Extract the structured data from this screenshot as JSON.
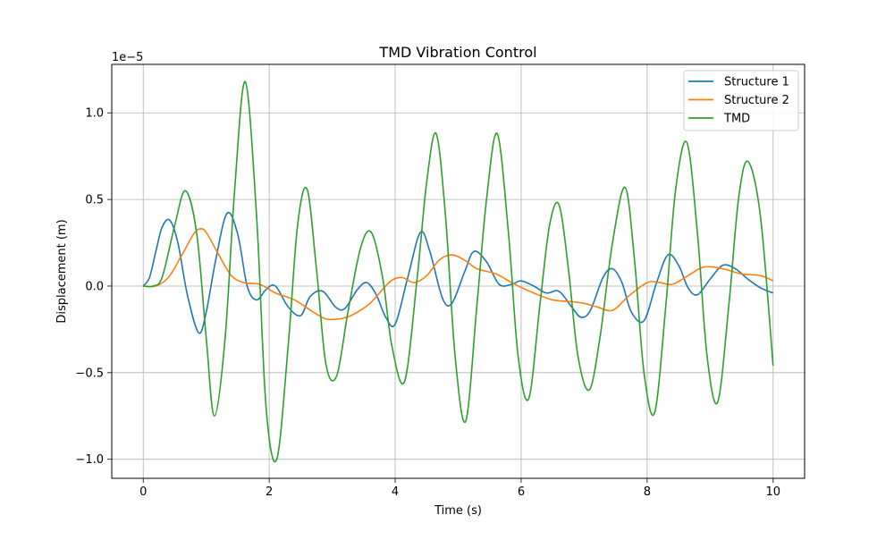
{
  "chart_data": {
    "type": "line",
    "title": "TMD Vibration Control",
    "xlabel": "Time (s)",
    "ylabel": "Displacement (m)",
    "offset_text": "1e−5",
    "scale": 1e-05,
    "xlim": [
      -0.5,
      10.5
    ],
    "ylim": [
      -1.11,
      1.28
    ],
    "xticks": [
      0,
      2,
      4,
      6,
      8,
      10
    ],
    "xtick_labels": [
      "0",
      "2",
      "4",
      "6",
      "8",
      "10"
    ],
    "yticks": [
      -1.0,
      -0.5,
      0.0,
      0.5,
      1.0
    ],
    "ytick_labels": [
      "−1.0",
      "−0.5",
      "0.0",
      "0.5",
      "1.0"
    ],
    "grid": true,
    "legend_position": "top-right",
    "series": [
      {
        "name": "Structure 1",
        "color": "#1f77b4",
        "x": [
          0,
          0.1,
          0.2,
          0.3,
          0.42,
          0.55,
          0.7,
          0.88,
          1.0,
          1.15,
          1.33,
          1.5,
          1.65,
          1.8,
          1.95,
          2.1,
          2.3,
          2.5,
          2.65,
          2.85,
          3.05,
          3.2,
          3.4,
          3.55,
          3.7,
          3.85,
          4.0,
          4.2,
          4.4,
          4.55,
          4.75,
          4.9,
          5.1,
          5.25,
          5.45,
          5.65,
          5.85,
          6.0,
          6.2,
          6.4,
          6.6,
          6.8,
          6.95,
          7.1,
          7.3,
          7.45,
          7.6,
          7.75,
          7.95,
          8.15,
          8.33,
          8.5,
          8.65,
          8.8,
          9.0,
          9.2,
          9.4,
          9.6,
          9.8,
          10.0
        ],
        "values": [
          0,
          0.05,
          0.2,
          0.34,
          0.38,
          0.25,
          -0.05,
          -0.27,
          -0.15,
          0.15,
          0.42,
          0.3,
          0.0,
          -0.08,
          -0.02,
          0.0,
          -0.12,
          -0.17,
          -0.06,
          -0.03,
          -0.12,
          -0.13,
          -0.02,
          0.02,
          -0.05,
          -0.18,
          -0.22,
          0.05,
          0.31,
          0.2,
          -0.07,
          -0.1,
          0.08,
          0.2,
          0.14,
          0.01,
          0.01,
          0.03,
          0.0,
          -0.04,
          -0.03,
          -0.12,
          -0.18,
          -0.14,
          0.05,
          0.1,
          0.02,
          -0.15,
          -0.2,
          0.02,
          0.18,
          0.12,
          -0.01,
          -0.05,
          0.04,
          0.12,
          0.1,
          0.04,
          -0.01,
          -0.04
        ]
      },
      {
        "name": "Structure 2",
        "color": "#ff7f0e",
        "x": [
          0,
          0.2,
          0.4,
          0.6,
          0.8,
          0.9,
          1.0,
          1.2,
          1.4,
          1.6,
          1.85,
          2.1,
          2.4,
          2.7,
          2.9,
          3.1,
          3.3,
          3.6,
          3.9,
          4.1,
          4.3,
          4.5,
          4.7,
          4.9,
          5.1,
          5.3,
          5.6,
          5.9,
          6.2,
          6.5,
          6.8,
          7.0,
          7.2,
          7.45,
          7.7,
          8.0,
          8.2,
          8.4,
          8.65,
          8.9,
          9.2,
          9.5,
          9.8,
          10.0
        ],
        "values": [
          0,
          0.0,
          0.05,
          0.17,
          0.3,
          0.33,
          0.31,
          0.18,
          0.06,
          0.02,
          0.01,
          -0.04,
          -0.08,
          -0.15,
          -0.19,
          -0.19,
          -0.17,
          -0.1,
          0.02,
          0.05,
          0.02,
          0.06,
          0.15,
          0.18,
          0.15,
          0.1,
          0.07,
          0.01,
          -0.04,
          -0.08,
          -0.09,
          -0.1,
          -0.12,
          -0.14,
          -0.06,
          0.02,
          0.02,
          0.01,
          0.06,
          0.11,
          0.1,
          0.07,
          0.06,
          0.03
        ]
      },
      {
        "name": "TMD",
        "color": "#2ca02c",
        "x": [
          0,
          0.15,
          0.3,
          0.5,
          0.67,
          0.85,
          1.0,
          1.13,
          1.3,
          1.45,
          1.62,
          1.8,
          1.95,
          2.12,
          2.3,
          2.45,
          2.6,
          2.75,
          2.9,
          3.07,
          3.25,
          3.45,
          3.62,
          3.8,
          3.95,
          4.15,
          4.35,
          4.5,
          4.65,
          4.8,
          4.95,
          5.12,
          5.3,
          5.45,
          5.62,
          5.8,
          5.95,
          6.12,
          6.3,
          6.45,
          6.6,
          6.75,
          6.9,
          7.08,
          7.25,
          7.45,
          7.65,
          7.8,
          7.95,
          8.12,
          8.3,
          8.45,
          8.63,
          8.8,
          8.95,
          9.12,
          9.3,
          9.45,
          9.6,
          9.8,
          10.0
        ],
        "values": [
          0,
          0.0,
          0.05,
          0.35,
          0.55,
          0.3,
          -0.3,
          -0.75,
          -0.3,
          0.55,
          1.18,
          0.4,
          -0.7,
          -1.0,
          -0.35,
          0.35,
          0.56,
          0.1,
          -0.45,
          -0.52,
          -0.15,
          0.22,
          0.31,
          0.05,
          -0.35,
          -0.55,
          0.05,
          0.6,
          0.88,
          0.4,
          -0.4,
          -0.78,
          -0.1,
          0.5,
          0.88,
          0.3,
          -0.4,
          -0.65,
          -0.1,
          0.35,
          0.47,
          0.1,
          -0.4,
          -0.6,
          -0.3,
          0.25,
          0.57,
          0.15,
          -0.5,
          -0.73,
          -0.1,
          0.55,
          0.83,
          0.3,
          -0.4,
          -0.67,
          -0.1,
          0.5,
          0.72,
          0.4,
          -0.46
        ]
      }
    ]
  }
}
